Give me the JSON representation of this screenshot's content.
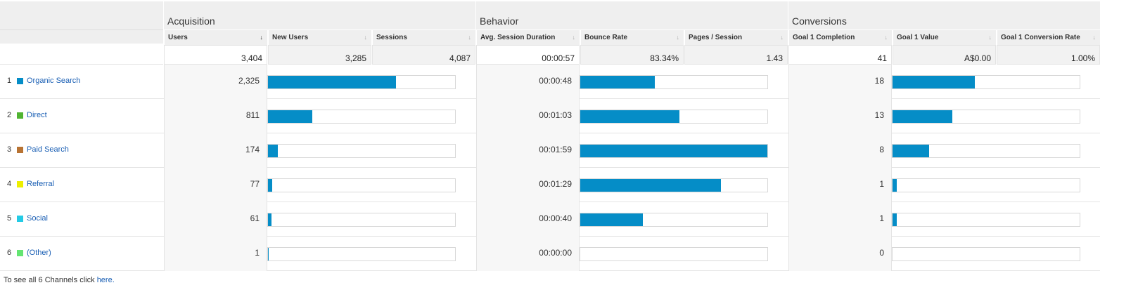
{
  "sections": [
    {
      "label": "Acquisition"
    },
    {
      "label": "Behavior"
    },
    {
      "label": "Conversions"
    }
  ],
  "columns": [
    {
      "label": "Users",
      "sort": "↓",
      "active": true
    },
    {
      "label": "New Users",
      "sort": "↓",
      "active": false
    },
    {
      "label": "Sessions",
      "sort": "↓",
      "active": false
    },
    {
      "label": "Avg. Session Duration",
      "sort": "↓",
      "active": false
    },
    {
      "label": "Bounce Rate",
      "sort": "↓",
      "active": false
    },
    {
      "label": "Pages / Session",
      "sort": "↓",
      "active": false
    },
    {
      "label": "Goal 1 Completion",
      "sort": "↓",
      "active": false
    },
    {
      "label": "Goal 1 Value",
      "sort": "↓",
      "active": false
    },
    {
      "label": "Goal 1 Conversion Rate",
      "sort": "↓",
      "active": false
    }
  ],
  "totals": [
    "3,404",
    "3,285",
    "4,087",
    "00:00:57",
    "83.34%",
    "1.43",
    "41",
    "A$0.00",
    "1.00%"
  ],
  "rows": [
    {
      "num": "1",
      "channel": "Organic Search",
      "color": "#058dc7",
      "users": "2,325",
      "users_pct": 0.683,
      "duration": "00:00:48",
      "duration_pct": 0.4,
      "goal": "18",
      "goal_pct": 0.44
    },
    {
      "num": "2",
      "channel": "Direct",
      "color": "#50b432",
      "users": "811",
      "users_pct": 0.238,
      "duration": "00:01:03",
      "duration_pct": 0.53,
      "goal": "13",
      "goal_pct": 0.32
    },
    {
      "num": "3",
      "channel": "Paid Search",
      "color": "#b87333",
      "users": "174",
      "users_pct": 0.051,
      "duration": "00:01:59",
      "duration_pct": 1.0,
      "goal": "8",
      "goal_pct": 0.195
    },
    {
      "num": "4",
      "channel": "Referral",
      "color": "#edef00",
      "users": "77",
      "users_pct": 0.023,
      "duration": "00:01:29",
      "duration_pct": 0.75,
      "goal": "1",
      "goal_pct": 0.024
    },
    {
      "num": "5",
      "channel": "Social",
      "color": "#24cbe5",
      "users": "61",
      "users_pct": 0.018,
      "duration": "00:00:40",
      "duration_pct": 0.336,
      "goal": "1",
      "goal_pct": 0.024
    },
    {
      "num": "6",
      "channel": "(Other)",
      "color": "#64e572",
      "users": "1",
      "users_pct": 0.0003,
      "duration": "00:00:00",
      "duration_pct": 0.0,
      "goal": "0",
      "goal_pct": 0.0
    }
  ],
  "footer": {
    "prefix": "To see all 6 Channels click ",
    "link": "here."
  }
}
